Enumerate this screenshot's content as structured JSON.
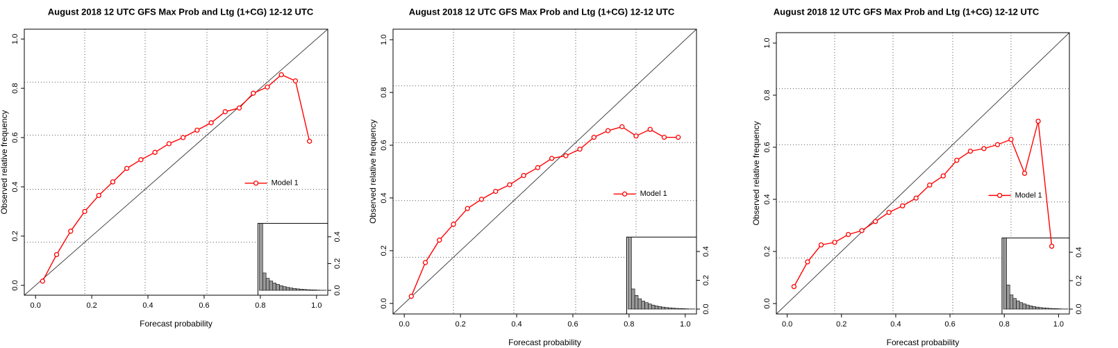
{
  "chart_data": [
    {
      "type": "line",
      "title": "August 2018 12 UTC GFS Max Prob and Ltg (1+CG) 12-12 UTC",
      "xlabel": "Forecast probability",
      "ylabel": "Observed relative frequency",
      "x": [
        0.025,
        0.075,
        0.125,
        0.175,
        0.225,
        0.275,
        0.325,
        0.375,
        0.425,
        0.475,
        0.525,
        0.575,
        0.625,
        0.675,
        0.725,
        0.775,
        0.825,
        0.875,
        0.925,
        0.975
      ],
      "series": [
        {
          "name": "Model 1",
          "color": "#ff0000",
          "values": [
            0.017,
            0.125,
            0.22,
            0.3,
            0.365,
            0.42,
            0.475,
            0.51,
            0.54,
            0.575,
            0.6,
            0.63,
            0.66,
            0.705,
            0.72,
            0.78,
            0.805,
            0.855,
            0.83,
            0.585
          ]
        }
      ],
      "xlim": [
        -0.04,
        1.04
      ],
      "ylim": [
        -0.04,
        1.04
      ],
      "xticks": [
        {
          "value": 0,
          "label": "0.0"
        },
        0.2,
        0.4,
        0.6,
        0.8,
        {
          "value": 1,
          "label": "1.0"
        }
      ],
      "yticks": [
        {
          "value": 0,
          "label": "0.0"
        },
        0.2,
        0.4,
        0.6,
        0.8,
        {
          "value": 1,
          "label": "1.0"
        }
      ],
      "xgrid": [
        0.175,
        0.39,
        0.61,
        0.825
      ],
      "ygrid": [
        0.175,
        0.39,
        0.61,
        0.825
      ],
      "histogram": {
        "bins": [
          0,
          0.05,
          0.1,
          0.15,
          0.2,
          0.25,
          0.3,
          0.35,
          0.4,
          0.45,
          0.5,
          0.55,
          0.6,
          0.65,
          0.7,
          0.75,
          0.8,
          0.85,
          0.9,
          0.95,
          1
        ],
        "counts": [
          0.5,
          0.13,
          0.09,
          0.07,
          0.055,
          0.045,
          0.035,
          0.028,
          0.022,
          0.018,
          0.014,
          0.011,
          0.009,
          0.007,
          0.005,
          0.004,
          0.003,
          0.002,
          0.001,
          0.001
        ],
        "ylim": [
          0,
          0.5
        ],
        "yticks": [
          {
            "value": 0,
            "label": "0.0"
          },
          0.2,
          0.4
        ]
      }
    },
    {
      "type": "line",
      "title": "August 2018 12 UTC GFS Max Prob and Ltg (1+CG) 12-12 UTC",
      "xlabel": "Forecast probability",
      "ylabel": "Observed relative frequency",
      "x": [
        0.025,
        0.075,
        0.125,
        0.175,
        0.225,
        0.275,
        0.325,
        0.375,
        0.425,
        0.475,
        0.525,
        0.575,
        0.625,
        0.675,
        0.725,
        0.775,
        0.825,
        0.875,
        0.925,
        0.975
      ],
      "series": [
        {
          "name": "Model 1",
          "color": "#ff0000",
          "values": [
            0.027,
            0.155,
            0.24,
            0.3,
            0.36,
            0.395,
            0.425,
            0.45,
            0.485,
            0.515,
            0.55,
            0.56,
            0.585,
            0.63,
            0.655,
            0.67,
            0.635,
            0.66,
            0.63,
            0.63
          ]
        }
      ],
      "xlim": [
        -0.04,
        1.04
      ],
      "ylim": [
        -0.04,
        1.04
      ],
      "xticks": [
        {
          "value": 0,
          "label": "0.0"
        },
        0.2,
        0.4,
        0.6,
        0.8,
        {
          "value": 1,
          "label": "1.0"
        }
      ],
      "yticks": [
        {
          "value": 0,
          "label": "0.0"
        },
        0.2,
        0.4,
        0.6,
        0.8,
        {
          "value": 1,
          "label": "1.0"
        }
      ],
      "xgrid": [
        0.175,
        0.39,
        0.61,
        0.825
      ],
      "ygrid": [
        0.175,
        0.39,
        0.61,
        0.825
      ],
      "histogram": {
        "bins": [
          0,
          0.05,
          0.1,
          0.15,
          0.2,
          0.25,
          0.3,
          0.35,
          0.4,
          0.45,
          0.5,
          0.55,
          0.6,
          0.65,
          0.7,
          0.75,
          0.8,
          0.85,
          0.9,
          0.95,
          1
        ],
        "counts": [
          0.5,
          0.14,
          0.095,
          0.072,
          0.056,
          0.045,
          0.036,
          0.028,
          0.022,
          0.018,
          0.014,
          0.011,
          0.009,
          0.007,
          0.005,
          0.004,
          0.003,
          0.002,
          0.001,
          0.001
        ],
        "ylim": [
          0,
          0.5
        ],
        "yticks": [
          {
            "value": 0,
            "label": "0.0"
          },
          0.2,
          0.4
        ]
      }
    },
    {
      "type": "line",
      "title": "August 2018 12 UTC GFS Max Prob and Ltg (1+CG) 12-12 UTC",
      "xlabel": "Forecast probability",
      "ylabel": "Observed relative frequency",
      "x": [
        0.025,
        0.075,
        0.125,
        0.175,
        0.225,
        0.275,
        0.325,
        0.375,
        0.425,
        0.475,
        0.525,
        0.575,
        0.625,
        0.675,
        0.725,
        0.775,
        0.825,
        0.875,
        0.925,
        0.975
      ],
      "series": [
        {
          "name": "Model 1",
          "color": "#ff0000",
          "values": [
            0.065,
            0.16,
            0.225,
            0.235,
            0.265,
            0.28,
            0.315,
            0.35,
            0.375,
            0.405,
            0.455,
            0.49,
            0.55,
            0.585,
            0.595,
            0.61,
            0.63,
            0.5,
            0.7,
            0.22
          ]
        }
      ],
      "xlim": [
        -0.04,
        1.04
      ],
      "ylim": [
        -0.04,
        1.04
      ],
      "xticks": [
        {
          "value": 0,
          "label": "0.0"
        },
        0.2,
        0.4,
        0.6,
        0.8,
        {
          "value": 1,
          "label": "1.0"
        }
      ],
      "yticks": [
        {
          "value": 0,
          "label": "0.0"
        },
        0.2,
        0.4,
        0.6,
        0.8,
        {
          "value": 1,
          "label": "1.0"
        }
      ],
      "xgrid": [
        0.175,
        0.39,
        0.61,
        0.825
      ],
      "ygrid": [
        0.175,
        0.39,
        0.61,
        0.825
      ],
      "histogram": {
        "bins": [
          0,
          0.05,
          0.1,
          0.15,
          0.2,
          0.25,
          0.3,
          0.35,
          0.4,
          0.45,
          0.5,
          0.55,
          0.6,
          0.65,
          0.7,
          0.75,
          0.8,
          0.85,
          0.9,
          0.95,
          1
        ],
        "counts": [
          0.5,
          0.17,
          0.1,
          0.075,
          0.058,
          0.046,
          0.037,
          0.029,
          0.023,
          0.018,
          0.014,
          0.011,
          0.009,
          0.007,
          0.005,
          0.004,
          0.003,
          0.002,
          0.001,
          0.001
        ],
        "ylim": [
          0,
          0.5
        ],
        "yticks": [
          {
            "value": 0,
            "label": "0.0"
          },
          0.2,
          0.4
        ]
      }
    }
  ]
}
